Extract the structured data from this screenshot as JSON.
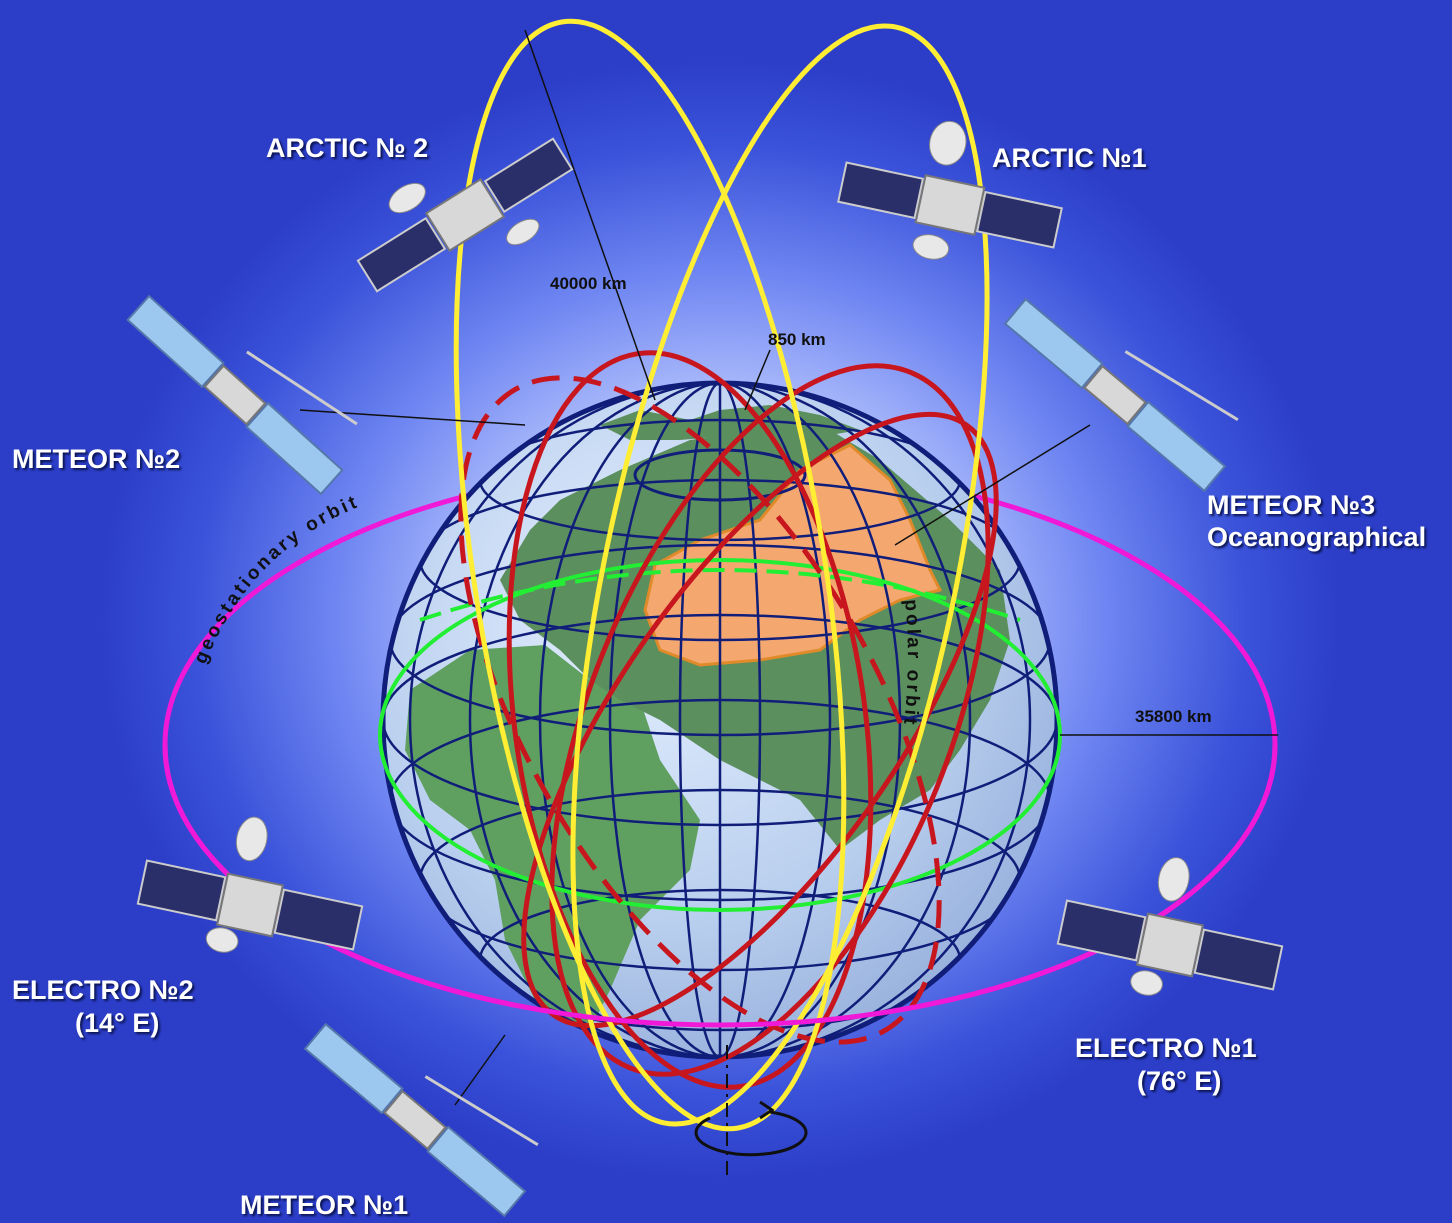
{
  "satellites": {
    "arctic2": "ARCTIC  № 2",
    "arctic1": "ARCTIC №1",
    "meteor2": "METEOR №2",
    "meteor3": "METEOR №3",
    "meteor3_sub": "Oceanographical",
    "meteor1": "METEOR №1",
    "electro2": "ELECTRO №2",
    "electro2_sub": "(14° E)",
    "electro1": "ELECTRO №1",
    "electro1_sub": "(76° E)"
  },
  "distances": {
    "high_elliptical": "40000 km",
    "polar": "850 km",
    "geostationary": "35800 km"
  },
  "orbits": {
    "geostationary": "geostationary orbit",
    "polar": "polar orbit"
  },
  "colors": {
    "geostationary": "#f019d8",
    "high_elliptical": "#ffee33",
    "polar": "#c8161e",
    "equator": "#22ee33",
    "grid": "#101e7a",
    "land": "#5c8f5e",
    "russia": "#f4a870"
  }
}
